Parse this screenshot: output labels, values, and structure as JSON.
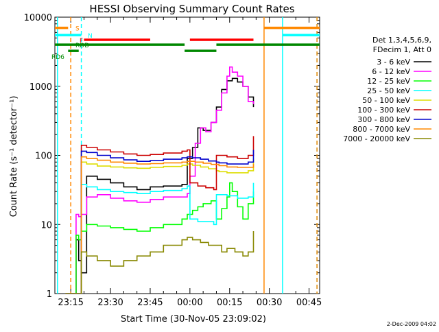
{
  "chart_data": {
    "type": "line",
    "title": "HESSI Observing Summary Count Rates",
    "xlabel": "Start Time (30-Nov-05 23:09:02)",
    "ylabel": "Count Rate (s⁻¹ detector⁻¹)",
    "footer_date": "2-Dec-2009 04:02",
    "y_scale": "log",
    "ylim": [
      1,
      10000
    ],
    "y_ticks": [
      {
        "value": 1,
        "label": "1"
      },
      {
        "value": 10,
        "label": "10"
      },
      {
        "value": 100,
        "label": "100"
      },
      {
        "value": 1000,
        "label": "1000"
      },
      {
        "value": 10000,
        "label": "10000"
      }
    ],
    "xlim": [
      "23:09",
      "00:49"
    ],
    "x_ticks": [
      "23:15",
      "23:30",
      "23:45",
      "00:00",
      "00:15",
      "00:30",
      "00:45"
    ],
    "legend_position": "right",
    "legend_header": [
      "Det 1,3,4,5,6,9,",
      "FDecim 1, Att 0"
    ],
    "series": [
      {
        "name": "3 - 6 keV",
        "color": "#000000",
        "x": [
          "23:13",
          "23:14",
          "23:15",
          "23:16",
          "23:17",
          "23:18",
          "23:19",
          "23:21",
          "23:25",
          "23:30",
          "23:35",
          "23:40",
          "23:45",
          "23:50",
          "23:57",
          "23:59",
          "00:01",
          "00:03",
          "00:05",
          "00:08",
          "00:10",
          "00:12",
          "00:14",
          "00:16",
          "00:18",
          "00:20",
          "00:22",
          "00:24"
        ],
        "y": [
          0,
          0,
          0,
          0,
          6,
          3,
          2,
          50,
          45,
          40,
          35,
          32,
          35,
          36,
          38,
          90,
          130,
          250,
          230,
          300,
          500,
          900,
          1200,
          1300,
          1150,
          1000,
          700,
          500
        ]
      },
      {
        "name": "6 - 12 keV",
        "color": "#ff00ff",
        "x": [
          "23:13",
          "23:14",
          "23:15",
          "23:16",
          "23:17",
          "23:18",
          "23:19",
          "23:21",
          "23:25",
          "23:30",
          "23:35",
          "23:40",
          "23:45",
          "23:50",
          "23:57",
          "23:59",
          "00:00",
          "00:02",
          "00:04",
          "00:06",
          "00:08",
          "00:10",
          "00:12",
          "00:14",
          "00:15",
          "00:16",
          "00:18",
          "00:20",
          "00:22",
          "00:24"
        ],
        "y": [
          0,
          0,
          0,
          0,
          14,
          13,
          14,
          25,
          27,
          24,
          22,
          21,
          23,
          25,
          25,
          28,
          50,
          150,
          250,
          220,
          300,
          450,
          800,
          1400,
          1900,
          1600,
          1400,
          1000,
          600,
          550
        ]
      },
      {
        "name": "12 - 25 keV",
        "color": "#00ff00",
        "x": [
          "23:13",
          "23:14",
          "23:15",
          "23:16",
          "23:17",
          "23:18",
          "23:19",
          "23:21",
          "23:25",
          "23:30",
          "23:35",
          "23:40",
          "23:45",
          "23:50",
          "23:57",
          "23:59",
          "00:01",
          "00:03",
          "00:05",
          "00:08",
          "00:10",
          "00:12",
          "00:14",
          "00:15",
          "00:16",
          "00:18",
          "00:20",
          "00:22",
          "00:24"
        ],
        "y": [
          0,
          0,
          0,
          0,
          7,
          6,
          8,
          10,
          9.5,
          9,
          8.5,
          8,
          9,
          10,
          12,
          14,
          16,
          18,
          20,
          22,
          12,
          17,
          25,
          40,
          30,
          18,
          12,
          20,
          30
        ]
      },
      {
        "name": "25 - 50 keV",
        "color": "#00ffff",
        "x": [
          "23:13",
          "23:14",
          "23:15",
          "23:16",
          "23:17",
          "23:18",
          "23:19",
          "23:21",
          "23:25",
          "23:30",
          "23:35",
          "23:40",
          "23:45",
          "23:50",
          "23:57",
          "23:59",
          "00:00",
          "00:03",
          "00:06",
          "00:09",
          "00:10",
          "00:14",
          "00:18",
          "00:22",
          "00:24"
        ],
        "y": [
          0,
          0,
          0,
          0,
          0,
          0,
          38,
          35,
          32,
          30,
          29,
          28,
          30,
          31,
          33,
          36,
          12,
          11,
          11,
          10,
          27,
          26,
          24,
          25,
          40
        ]
      },
      {
        "name": "50 - 100 keV",
        "color": "#dddd00",
        "x": [
          "23:13",
          "23:14",
          "23:15",
          "23:16",
          "23:17",
          "23:18",
          "23:19",
          "23:21",
          "23:25",
          "23:30",
          "23:35",
          "23:40",
          "23:45",
          "23:50",
          "23:57",
          "23:59",
          "00:01",
          "00:04",
          "00:07",
          "00:10",
          "00:11",
          "00:14",
          "00:18",
          "00:22",
          "00:24"
        ],
        "y": [
          0,
          0,
          0,
          0,
          0,
          0,
          80,
          75,
          70,
          68,
          66,
          65,
          67,
          69,
          72,
          75,
          72,
          68,
          64,
          60,
          58,
          56,
          56,
          60,
          90
        ]
      },
      {
        "name": "100 - 300 keV",
        "color": "#cc0000",
        "x": [
          "23:13",
          "23:14",
          "23:15",
          "23:16",
          "23:17",
          "23:18",
          "23:19",
          "23:21",
          "23:25",
          "23:30",
          "23:35",
          "23:40",
          "23:45",
          "23:50",
          "23:57",
          "23:59",
          "00:00",
          "00:03",
          "00:06",
          "00:09",
          "00:10",
          "00:14",
          "00:18",
          "00:22",
          "00:24"
        ],
        "y": [
          0,
          0,
          0,
          0,
          0,
          0,
          140,
          130,
          120,
          112,
          105,
          100,
          103,
          108,
          115,
          120,
          40,
          36,
          34,
          32,
          100,
          95,
          90,
          100,
          190
        ]
      },
      {
        "name": "300 - 800 keV",
        "color": "#0000cc",
        "x": [
          "23:13",
          "23:14",
          "23:15",
          "23:16",
          "23:17",
          "23:18",
          "23:19",
          "23:21",
          "23:25",
          "23:30",
          "23:35",
          "23:40",
          "23:45",
          "23:50",
          "23:57",
          "23:59",
          "00:01",
          "00:04",
          "00:07",
          "00:10",
          "00:11",
          "00:14",
          "00:18",
          "00:22",
          "00:24"
        ],
        "y": [
          0,
          0,
          0,
          0,
          0,
          0,
          115,
          110,
          100,
          92,
          86,
          82,
          84,
          88,
          92,
          95,
          92,
          88,
          83,
          80,
          78,
          75,
          75,
          80,
          120
        ]
      },
      {
        "name": "800 - 7000 keV",
        "color": "#ff8800",
        "x": [
          "23:13",
          "23:14",
          "23:15",
          "23:16",
          "23:17",
          "23:18",
          "23:19",
          "23:21",
          "23:25",
          "23:30",
          "23:35",
          "23:40",
          "23:45",
          "23:50",
          "23:57",
          "23:59",
          "00:02",
          "00:05",
          "00:08",
          "00:11",
          "00:14",
          "00:18",
          "00:22",
          "00:24"
        ],
        "y": [
          0,
          0,
          0,
          0,
          0,
          0,
          95,
          90,
          85,
          80,
          77,
          75,
          76,
          78,
          80,
          82,
          80,
          77,
          74,
          71,
          68,
          67,
          67,
          75
        ]
      },
      {
        "name": "7000 - 20000 keV",
        "color": "#888800",
        "x": [
          "23:13",
          "23:14",
          "23:15",
          "23:16",
          "23:17",
          "23:18",
          "23:19",
          "23:21",
          "23:25",
          "23:30",
          "23:35",
          "23:40",
          "23:45",
          "23:50",
          "23:57",
          "23:59",
          "00:01",
          "00:04",
          "00:07",
          "00:10",
          "00:12",
          "00:14",
          "00:17",
          "00:20",
          "00:22",
          "00:24"
        ],
        "y": [
          0,
          0,
          0,
          0,
          0,
          0,
          4,
          3.5,
          3,
          2.5,
          3,
          3.5,
          4,
          5,
          6,
          6.5,
          6,
          5.5,
          5,
          5,
          4,
          4.5,
          4,
          3.5,
          4,
          8
        ]
      }
    ],
    "state_bars": [
      {
        "label": "S",
        "color": "#ff8800",
        "level": 7000,
        "segments": [
          [
            "23:09",
            "23:14"
          ],
          [
            "00:28",
            "00:49"
          ]
        ]
      },
      {
        "label": "N",
        "color": "#00ffff",
        "level": 5500,
        "segments": [
          [
            "23:09",
            "23:19"
          ],
          [
            "00:35",
            "00:49"
          ]
        ]
      },
      {
        "label": "F",
        "color": "#ff0000",
        "level": 4700,
        "segments": [
          [
            "23:20",
            "23:45"
          ],
          [
            "00:00",
            "00:24"
          ]
        ]
      },
      {
        "label": "RDD",
        "color": "#008800",
        "level": 4000,
        "segments": [
          [
            "23:09",
            "23:58"
          ],
          [
            "00:10",
            "00:49"
          ]
        ]
      },
      {
        "label": "RD6",
        "color": "#008800",
        "level": 3250,
        "segments": [
          [
            "23:14",
            "23:18"
          ],
          [
            "23:58",
            "00:10"
          ]
        ]
      }
    ],
    "markers": [
      {
        "time": "23:10",
        "color": "#00ffff",
        "style": "solid"
      },
      {
        "time": "23:15",
        "color": "#ff8800",
        "style": "dashed"
      },
      {
        "time": "23:19",
        "color": "#00ffff",
        "style": "dashed"
      },
      {
        "time": "00:28",
        "color": "#ff8800",
        "style": "solid"
      },
      {
        "time": "00:35",
        "color": "#00ffff",
        "style": "solid"
      },
      {
        "time": "00:48",
        "color": "#00ffff",
        "style": "dashed"
      },
      {
        "time": "00:48",
        "color": "#ff8800",
        "style": "dashed"
      }
    ]
  }
}
